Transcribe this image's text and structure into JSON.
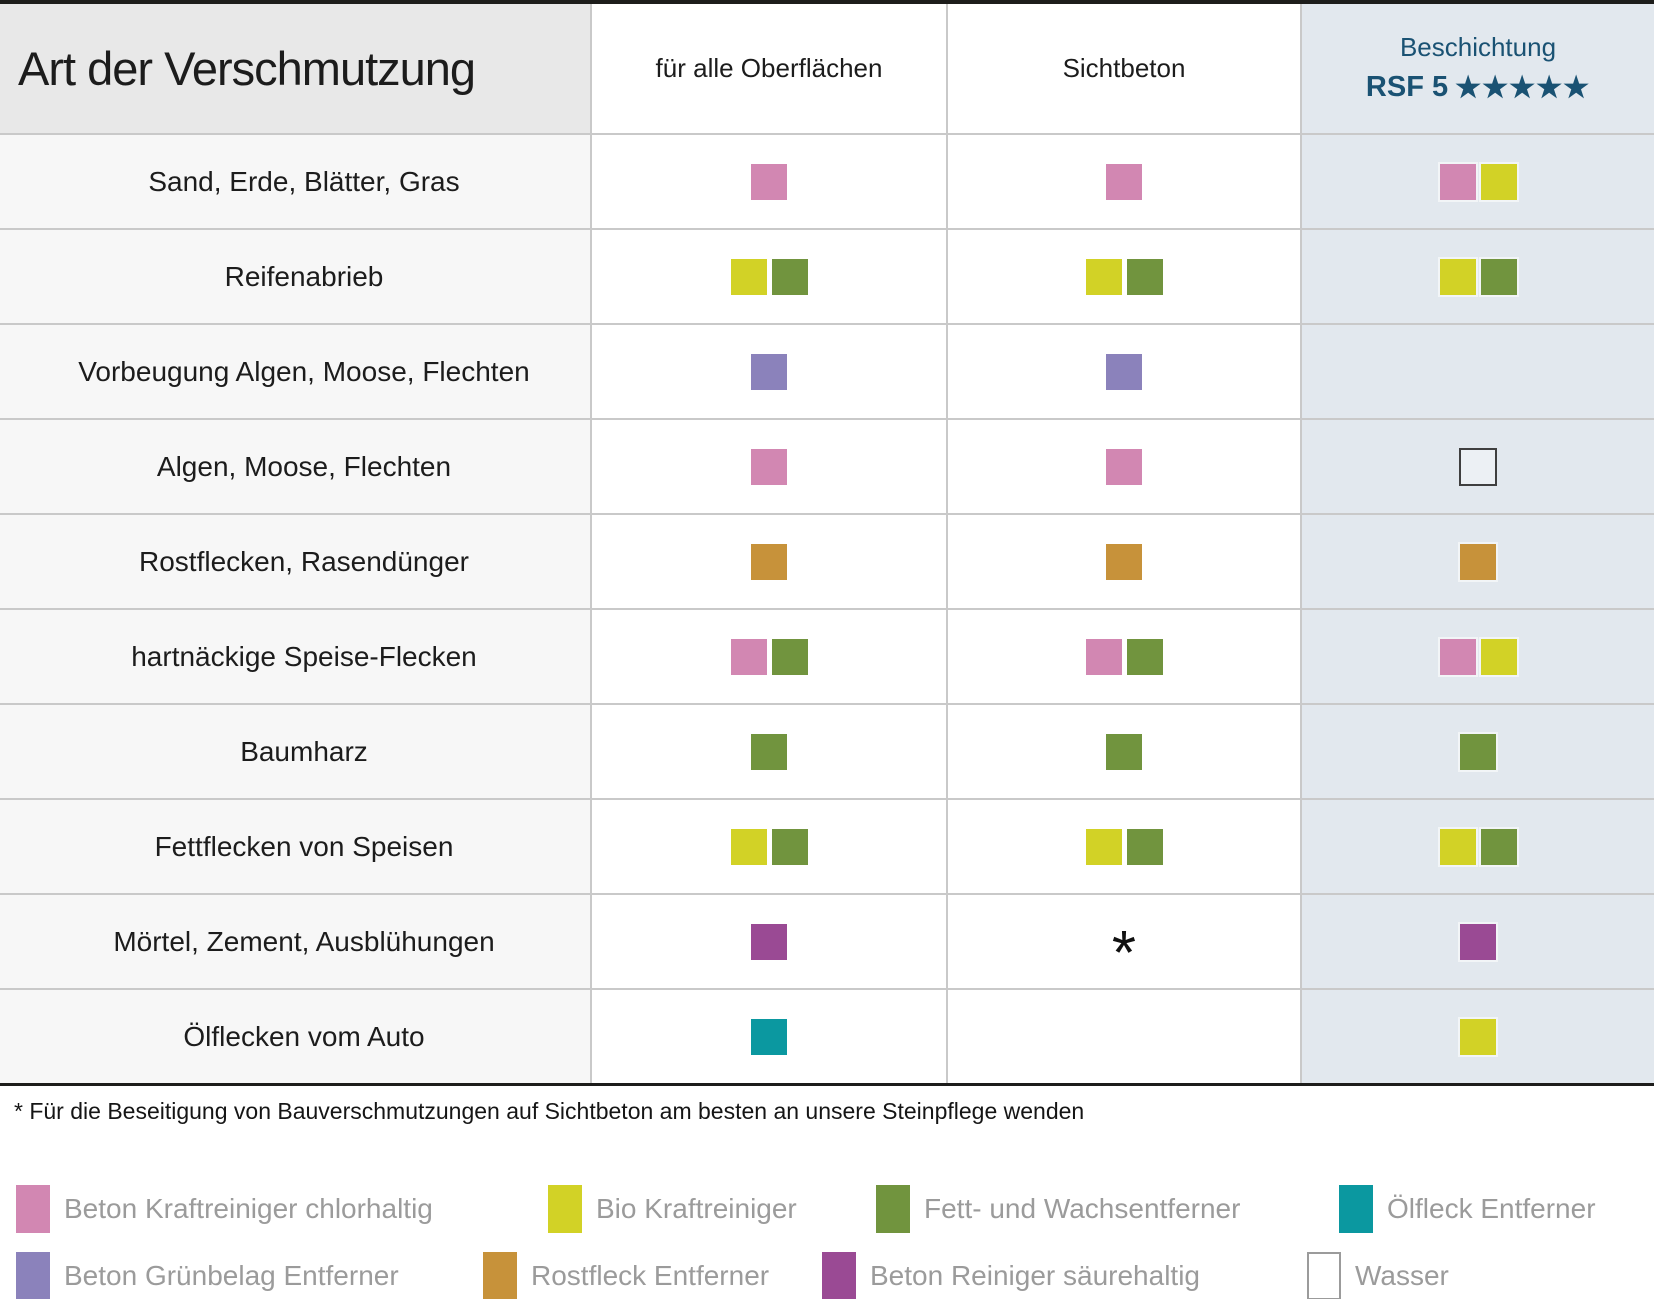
{
  "table": {
    "header": {
      "col1": "Art der Verschmutzung",
      "col2": "für alle Oberflächen",
      "col3": "Sichtbeton",
      "col4_line1": "Beschichtung",
      "col4_line2": "RSF 5",
      "col4_stars": "★★★★★"
    },
    "rows": [
      {
        "label": "Sand, Erde, Blätter, Gras",
        "all_surfaces": [
          "chlor"
        ],
        "sichtbeton": [
          "chlor"
        ],
        "beschichtung": [
          "chlor",
          "bio"
        ]
      },
      {
        "label": "Reifenabrieb",
        "all_surfaces": [
          "bio",
          "fett"
        ],
        "sichtbeton": [
          "bio",
          "fett"
        ],
        "beschichtung": [
          "bio",
          "fett"
        ]
      },
      {
        "label": "Vorbeugung Algen, Moose, Flechten",
        "all_surfaces": [
          "gruen"
        ],
        "sichtbeton": [
          "gruen"
        ],
        "beschichtung": []
      },
      {
        "label": "Algen, Moose, Flechten",
        "all_surfaces": [
          "chlor"
        ],
        "sichtbeton": [
          "chlor"
        ],
        "beschichtung": [
          "wasser"
        ]
      },
      {
        "label": "Rostflecken, Rasendünger",
        "all_surfaces": [
          "rost"
        ],
        "sichtbeton": [
          "rost"
        ],
        "beschichtung": [
          "rost"
        ]
      },
      {
        "label": "hartnäckige Speise-Flecken",
        "all_surfaces": [
          "chlor",
          "fett"
        ],
        "sichtbeton": [
          "chlor",
          "fett"
        ],
        "beschichtung": [
          "chlor",
          "bio"
        ]
      },
      {
        "label": "Baumharz",
        "all_surfaces": [
          "fett"
        ],
        "sichtbeton": [
          "fett"
        ],
        "beschichtung": [
          "fett"
        ]
      },
      {
        "label": "Fettflecken von Speisen",
        "all_surfaces": [
          "bio",
          "fett"
        ],
        "sichtbeton": [
          "bio",
          "fett"
        ],
        "beschichtung": [
          "bio",
          "fett"
        ]
      },
      {
        "label": "Mörtel, Zement, Ausblühungen",
        "all_surfaces": [
          "saeure"
        ],
        "sichtbeton": [
          "asterisk"
        ],
        "beschichtung": [
          "saeure"
        ]
      },
      {
        "label": "Ölflecken vom Auto",
        "all_surfaces": [
          "oel"
        ],
        "sichtbeton": [],
        "beschichtung": [
          "bio"
        ]
      }
    ]
  },
  "symbols": {
    "asterisk": "*"
  },
  "footnote": "* Für die Beseitigung von Bauverschmutzungen auf Sichtbeton am besten an unsere Steinpflege wenden",
  "legend": {
    "row1": [
      {
        "key": "chlor",
        "label": "Beton Kraftreiniger chlorhaltig"
      },
      {
        "key": "bio",
        "label": "Bio Kraftreiniger"
      },
      {
        "key": "fett",
        "label": "Fett- und Wachsentferner"
      },
      {
        "key": "oel",
        "label": "Ölfleck Entferner"
      }
    ],
    "row2": [
      {
        "key": "gruen",
        "label": "Beton Grünbelag Entferner"
      },
      {
        "key": "rost",
        "label": "Rostfleck Entferner"
      },
      {
        "key": "saeure",
        "label": "Beton Reiniger säurehaltig"
      },
      {
        "key": "wasser",
        "label": "Wasser"
      }
    ]
  },
  "colors": {
    "chlor": "#d287b2",
    "bio": "#d2d226",
    "fett": "#71943e",
    "oel": "#0b98a0",
    "gruen": "#8b82bb",
    "rost": "#c7923a",
    "saeure": "#9a4a94",
    "wasser": "#ffffff",
    "accent_blue": "#1a5273",
    "beschichtung_bg": "#e2e8ee"
  },
  "chart_data": {
    "type": "table",
    "title": "Art der Verschmutzung",
    "columns": [
      "Art der Verschmutzung",
      "für alle Oberflächen",
      "Sichtbeton",
      "Beschichtung RSF 5★★★★★"
    ],
    "rows": [
      [
        "Sand, Erde, Blätter, Gras",
        [
          "Beton Kraftreiniger chlorhaltig"
        ],
        [
          "Beton Kraftreiniger chlorhaltig"
        ],
        [
          "Beton Kraftreiniger chlorhaltig",
          "Bio Kraftreiniger"
        ]
      ],
      [
        "Reifenabrieb",
        [
          "Bio Kraftreiniger",
          "Fett- und Wachsentferner"
        ],
        [
          "Bio Kraftreiniger",
          "Fett- und Wachsentferner"
        ],
        [
          "Bio Kraftreiniger",
          "Fett- und Wachsentferner"
        ]
      ],
      [
        "Vorbeugung Algen, Moose, Flechten",
        [
          "Beton Grünbelag Entferner"
        ],
        [
          "Beton Grünbelag Entferner"
        ],
        []
      ],
      [
        "Algen, Moose, Flechten",
        [
          "Beton Kraftreiniger chlorhaltig"
        ],
        [
          "Beton Kraftreiniger chlorhaltig"
        ],
        [
          "Wasser"
        ]
      ],
      [
        "Rostflecken, Rasendünger",
        [
          "Rostfleck Entferner"
        ],
        [
          "Rostfleck Entferner"
        ],
        [
          "Rostfleck Entferner"
        ]
      ],
      [
        "hartnäckige Speise-Flecken",
        [
          "Beton Kraftreiniger chlorhaltig",
          "Fett- und Wachsentferner"
        ],
        [
          "Beton Kraftreiniger chlorhaltig",
          "Fett- und Wachsentferner"
        ],
        [
          "Beton Kraftreiniger chlorhaltig",
          "Bio Kraftreiniger"
        ]
      ],
      [
        "Baumharz",
        [
          "Fett- und Wachsentferner"
        ],
        [
          "Fett- und Wachsentferner"
        ],
        [
          "Fett- und Wachsentferner"
        ]
      ],
      [
        "Fettflecken von Speisen",
        [
          "Bio Kraftreiniger",
          "Fett- und Wachsentferner"
        ],
        [
          "Bio Kraftreiniger",
          "Fett- und Wachsentferner"
        ],
        [
          "Bio Kraftreiniger",
          "Fett- und Wachsentferner"
        ]
      ],
      [
        "Mörtel, Zement, Ausblühungen",
        [
          "Beton Reiniger säurehaltig"
        ],
        [
          "*"
        ],
        [
          "Beton Reiniger säurehaltig"
        ]
      ],
      [
        "Ölflecken vom Auto",
        [
          "Ölfleck Entferner"
        ],
        [],
        [
          "Bio Kraftreiniger"
        ]
      ]
    ],
    "footnote": "* Für die Beseitigung von Bauverschmutzungen auf Sichtbeton am besten an unsere Steinpflege wenden"
  }
}
